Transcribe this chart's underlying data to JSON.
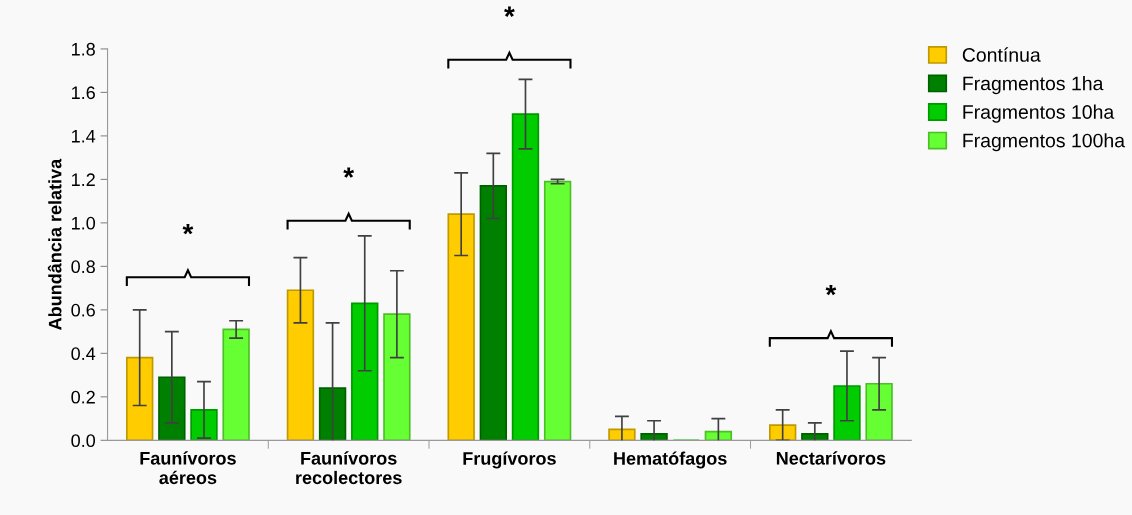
{
  "chart_data": {
    "type": "bar",
    "ylabel": "Abundância relativa",
    "categories": [
      "Faunívoros\naéreos",
      "Faunívoros\nrecolectores",
      "Frugívoros",
      "Hematófagos",
      "Nectarívoros"
    ],
    "series": [
      {
        "name": "Contínua",
        "color": "#ffcc00",
        "values": [
          0.38,
          0.69,
          1.04,
          0.05,
          0.07
        ],
        "errors": [
          0.22,
          0.15,
          0.19,
          0.06,
          0.07
        ]
      },
      {
        "name": "Fragmentos 1ha",
        "color": "#008000",
        "values": [
          0.29,
          0.24,
          1.17,
          0.03,
          0.03
        ],
        "errors": [
          0.21,
          0.3,
          0.15,
          0.06,
          0.05
        ]
      },
      {
        "name": "Fragmentos 10ha",
        "color": "#00cc00",
        "values": [
          0.14,
          0.63,
          1.5,
          0,
          0.25
        ],
        "errors": [
          0.13,
          0.31,
          0.16,
          null,
          0.16
        ]
      },
      {
        "name": "Fragmentos 100ha",
        "color": "#66ff33",
        "values": [
          0.51,
          0.58,
          1.19,
          0.04,
          0.26
        ],
        "errors": [
          0.04,
          0.2,
          0.01,
          0.06,
          0.12
        ]
      }
    ],
    "ylim": [
      0,
      1.8
    ],
    "yticks": [
      {
        "value": 0,
        "label": "0.0"
      },
      {
        "value": 0.2,
        "label": "0.2"
      },
      {
        "value": 0.4,
        "label": "0.4"
      },
      {
        "value": 0.6,
        "label": "0.6"
      },
      {
        "value": 0.8,
        "label": "0.8"
      },
      {
        "value": 1.0,
        "label": "1.0"
      },
      {
        "value": 1.2,
        "label": "1.2"
      },
      {
        "value": 1.4,
        "label": "1.4"
      },
      {
        "value": 1.6,
        "label": "1.6"
      },
      {
        "value": 1.8,
        "label": "1.8"
      }
    ],
    "annotations": [
      "*",
      "*",
      "*",
      "*"
    ],
    "grid": false,
    "legend": "top right"
  }
}
